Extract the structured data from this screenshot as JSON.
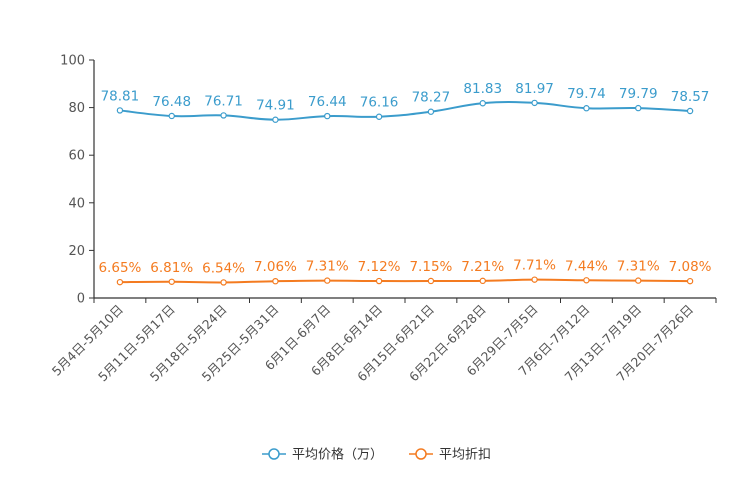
{
  "chart_data": {
    "type": "line",
    "categories": [
      "5月4日-5月10日",
      "5月11日-5月17日",
      "5月18日-5月24日",
      "5月25日-5月31日",
      "6月1日-6月7日",
      "6月8日-6月14日",
      "6月15日-6月21日",
      "6月22日-6月28日",
      "6月29日-7月5日",
      "7月6日-7月12日",
      "7月13日-7月19日",
      "7月20日-7月26日"
    ],
    "series": [
      {
        "name": "平均价格（万）",
        "color": "#3b9ccc",
        "values": [
          78.81,
          76.48,
          76.71,
          74.91,
          76.44,
          76.16,
          78.27,
          81.83,
          81.97,
          79.74,
          79.79,
          78.57
        ],
        "labels": [
          "78.81",
          "76.48",
          "76.71",
          "74.91",
          "76.44",
          "76.16",
          "78.27",
          "81.83",
          "81.97",
          "79.74",
          "79.79",
          "78.57"
        ]
      },
      {
        "name": "平均折扣",
        "color": "#f47b20",
        "values": [
          6.65,
          6.81,
          6.54,
          7.06,
          7.31,
          7.12,
          7.15,
          7.21,
          7.71,
          7.44,
          7.31,
          7.08
        ],
        "labels": [
          "6.65%",
          "6.81%",
          "6.54%",
          "7.06%",
          "7.31%",
          "7.12%",
          "7.15%",
          "7.21%",
          "7.71%",
          "7.44%",
          "7.31%",
          "7.08%"
        ]
      }
    ],
    "yticks": [
      "0",
      "20",
      "40",
      "60",
      "80",
      "100"
    ],
    "ylim": [
      0,
      100
    ],
    "title": "",
    "xlabel": "",
    "ylabel": "",
    "legend_position": "bottom-center"
  }
}
